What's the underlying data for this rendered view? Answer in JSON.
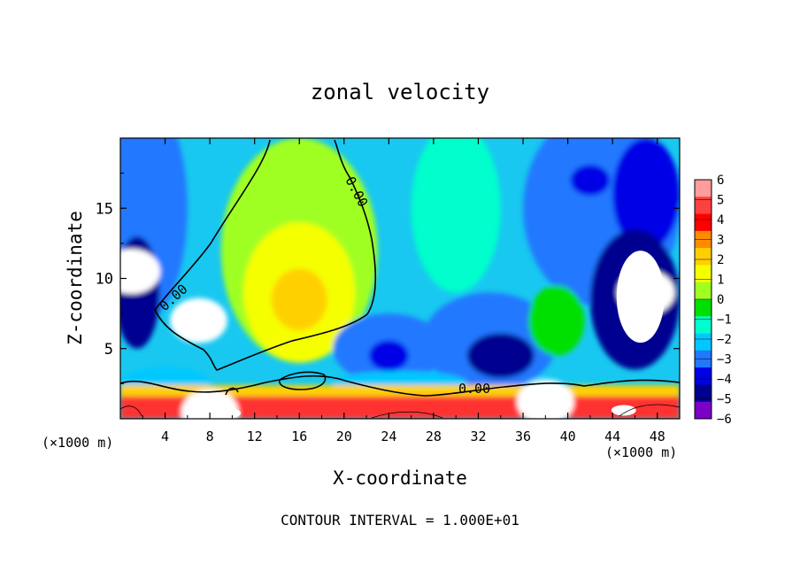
{
  "chart_data": {
    "type": "heatmap",
    "title": "zonal velocity",
    "xlabel": "X-coordinate",
    "ylabel": "Z-coordinate",
    "x_unit_note": "(x1000 m)",
    "x_unit_note_display": "(×1000 m)",
    "xlim": [
      0,
      50
    ],
    "ylim": [
      0,
      20
    ],
    "x_ticks": [
      4,
      8,
      12,
      16,
      20,
      24,
      28,
      32,
      36,
      40,
      44,
      48
    ],
    "y_ticks": [
      5,
      10,
      15
    ],
    "colorbar": {
      "levels": [
        6,
        5,
        4,
        3,
        2,
        1,
        0,
        -1,
        -2,
        -3,
        -4,
        -5,
        -6
      ],
      "labels": [
        "6",
        "5",
        "4",
        "3",
        "2",
        "1",
        "0",
        "−1",
        "−2",
        "−3",
        "−4",
        "−5",
        "−6"
      ],
      "colors": [
        "#ff9c9c",
        "#ff4040",
        "#ff0000",
        "#ff8c00",
        "#ffd000",
        "#f5ff00",
        "#a0ff20",
        "#00e000",
        "#00ffcc",
        "#00c8ff",
        "#2078ff",
        "#0000e6",
        "#000090",
        "#7a00c8"
      ]
    },
    "contour_labels": [
      "0.00",
      "0.00",
      "0.00"
    ],
    "footer": "CONTOUR INTERVAL = 1.000E+01",
    "features": [
      {
        "x": 16,
        "z": 8.5,
        "value": 2.6
      },
      {
        "x": 7,
        "z": 7.0,
        "value": 6.5
      },
      {
        "x": 34,
        "z": 4.2,
        "value": -6.0
      },
      {
        "x": 24,
        "z": 4.5,
        "value": -4.8
      },
      {
        "x": 47,
        "z": 9.0,
        "value": -6.5
      },
      {
        "x": 1,
        "z": 10.5,
        "value": -6.5
      },
      {
        "x": 38,
        "z": 1.2,
        "value": 6.5
      },
      {
        "x": 8,
        "z": 0.5,
        "value": 6.5
      },
      {
        "x": 42,
        "z": 17,
        "value": -4.5
      },
      {
        "x": 2,
        "z": 18,
        "value": -3.5
      }
    ]
  }
}
